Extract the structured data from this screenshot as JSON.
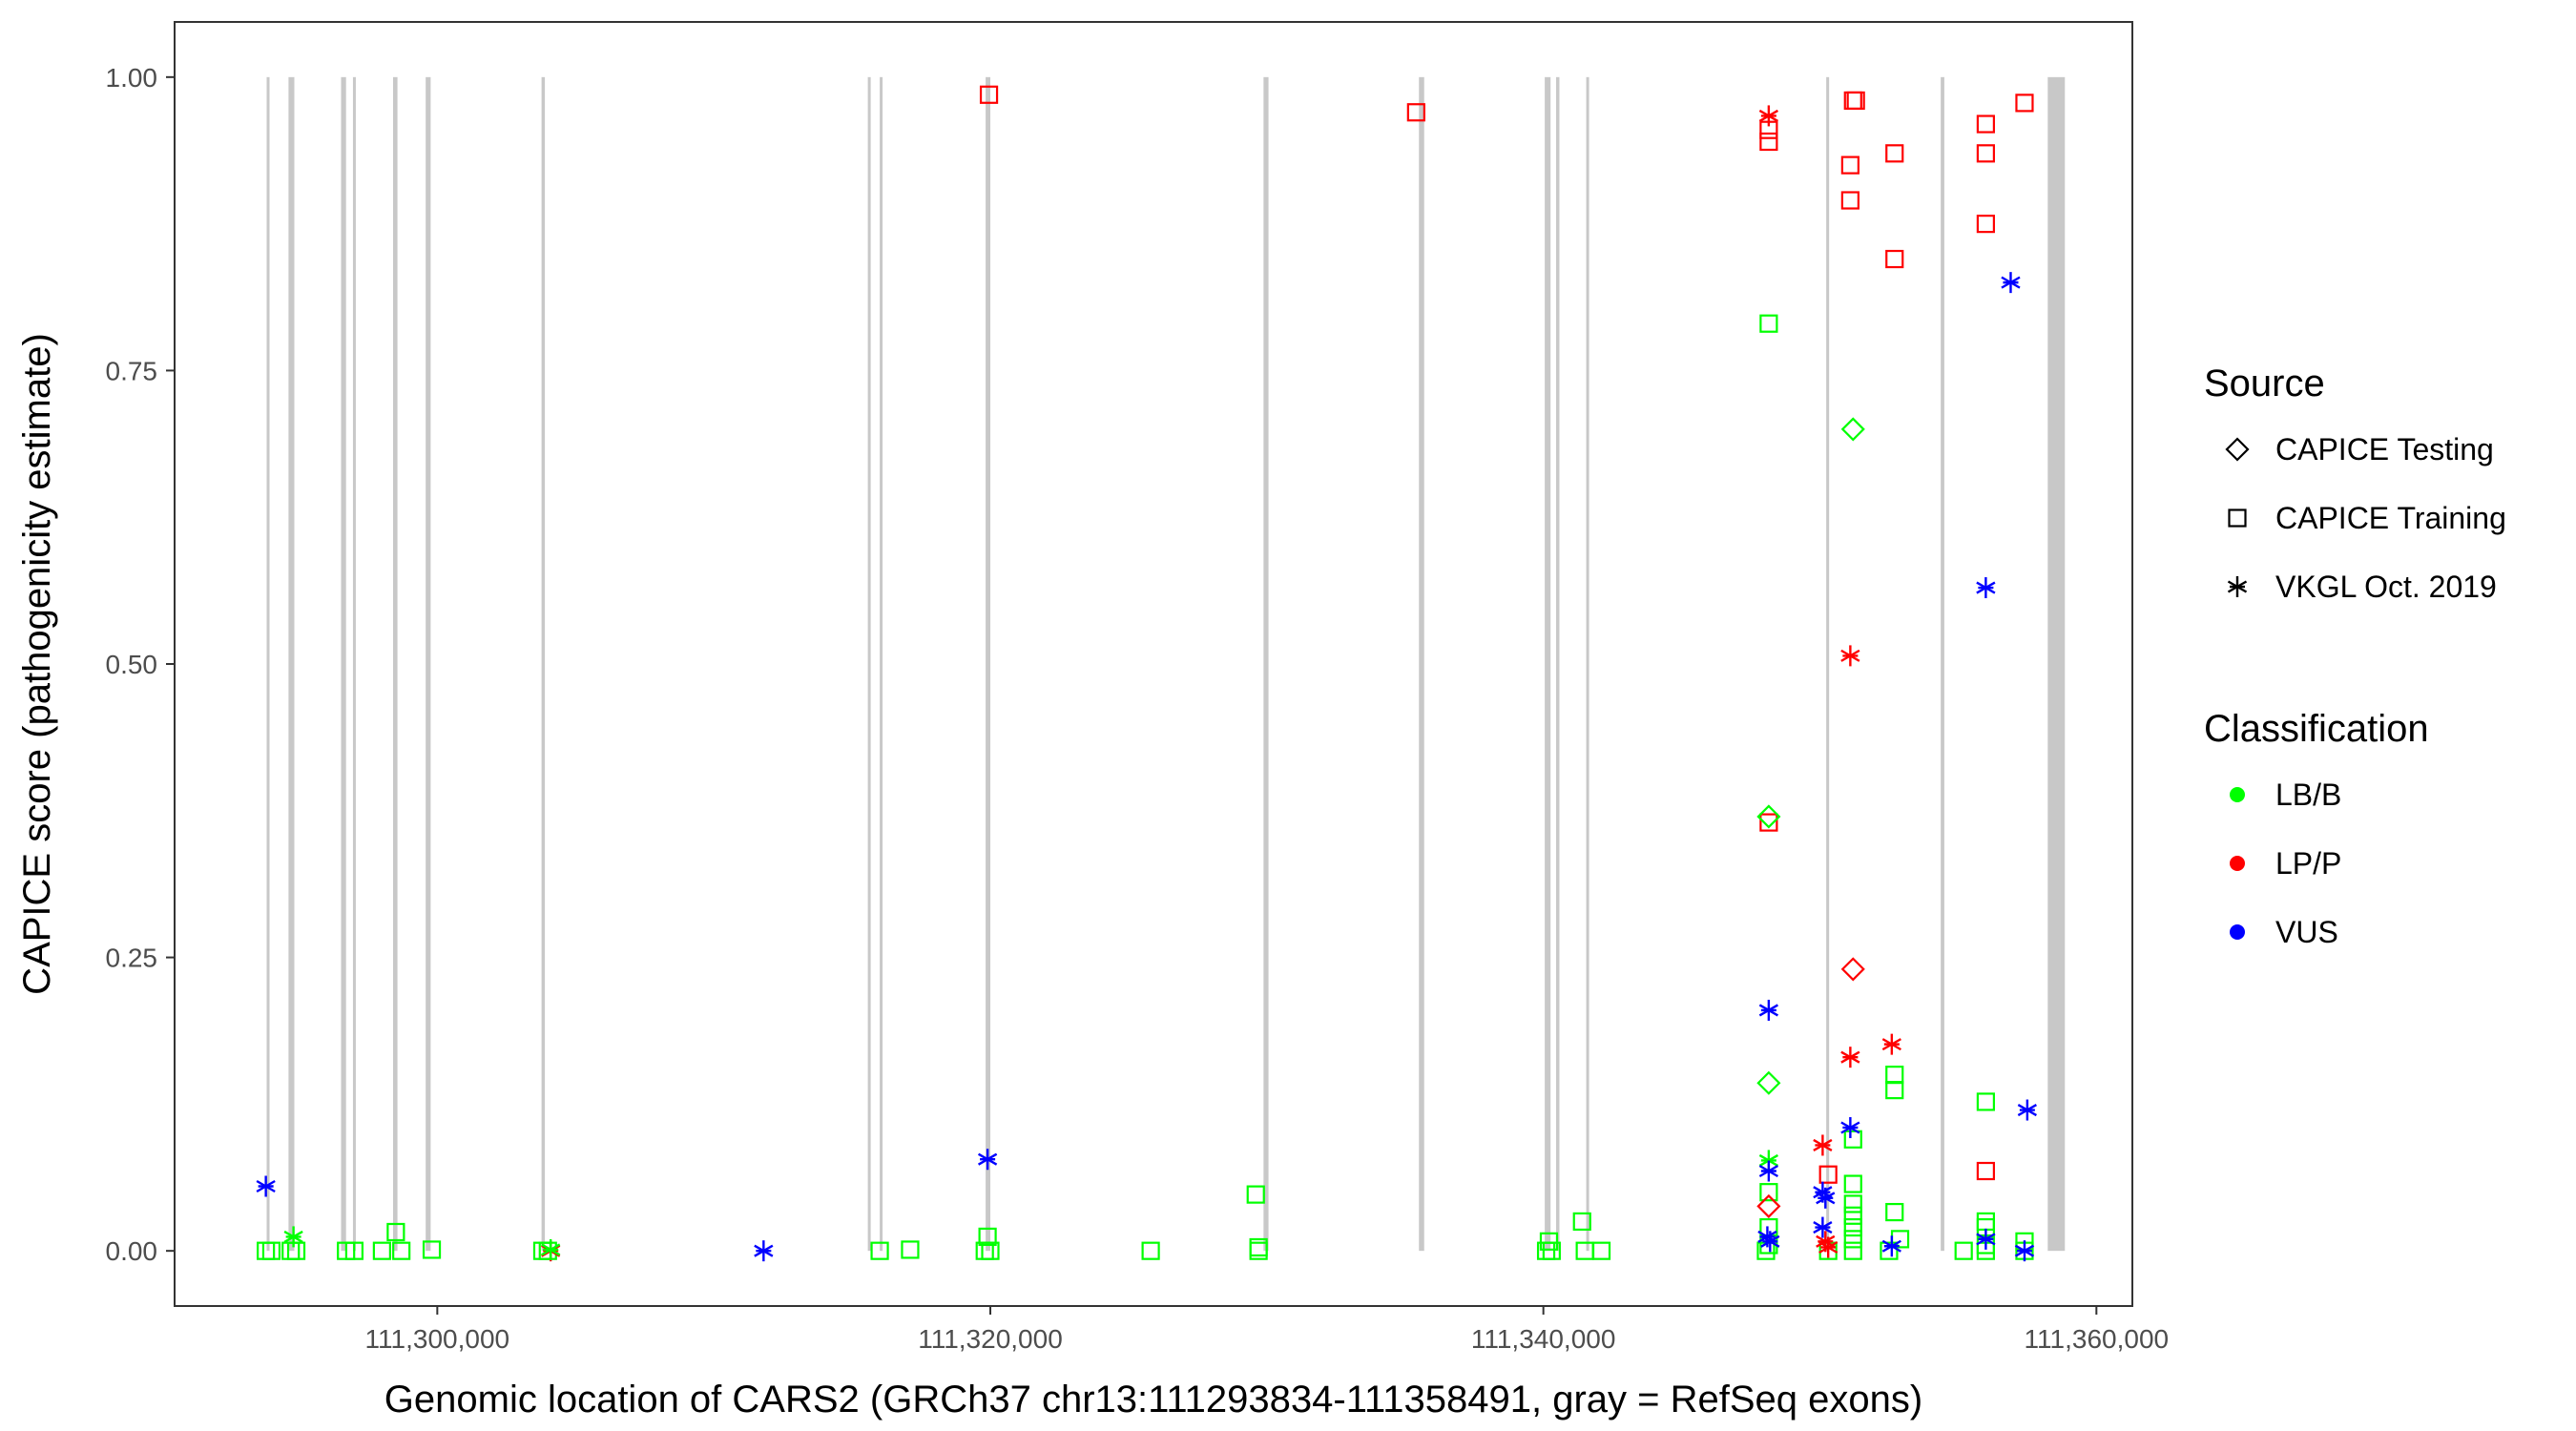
{
  "chart_data": {
    "type": "scatter",
    "xlabel": "Genomic location of CARS2 (GRCh37 chr13:111293834-111358491, gray = RefSeq exons)",
    "ylabel": "CAPICE score (pathogenicity estimate)",
    "xlim": [
      111290500,
      111361300
    ],
    "ylim": [
      -0.047,
      1.047
    ],
    "x_ticks": [
      111300000,
      111320000,
      111340000,
      111360000
    ],
    "x_tick_labels": [
      "111,300,000",
      "111,320,000",
      "111,340,000",
      "111,360,000"
    ],
    "y_ticks": [
      0,
      0.25,
      0.5,
      0.75,
      1
    ],
    "y_tick_labels": [
      "0.00",
      "0.25",
      "0.50",
      "0.75",
      "1.00"
    ],
    "grid": false,
    "legend_position": "right",
    "colors": {
      "LB/B": "#00ff00",
      "LP/P": "#ff0000",
      "VUS": "#0000ff",
      "exon": "#c8c8c8"
    },
    "exons": [
      [
        111293830,
        111293930
      ],
      [
        111294620,
        111294830
      ],
      [
        111296520,
        111296700
      ],
      [
        111296950,
        111297050
      ],
      [
        111298400,
        111298560
      ],
      [
        111299580,
        111299760
      ],
      [
        111303770,
        111303890
      ],
      [
        111315570,
        111315640
      ],
      [
        111316000,
        111316080
      ],
      [
        111319830,
        111320000
      ],
      [
        111329880,
        111330060
      ],
      [
        111335500,
        111335690
      ],
      [
        111340050,
        111340260
      ],
      [
        111340460,
        111340580
      ],
      [
        111341550,
        111341650
      ],
      [
        111350230,
        111350310
      ],
      [
        111354370,
        111354500
      ],
      [
        111358240,
        111358860
      ]
    ],
    "legends": [
      {
        "title": "Source",
        "items": [
          {
            "label": "CAPICE Testing",
            "shape": "diamond"
          },
          {
            "label": "CAPICE Training",
            "shape": "square"
          },
          {
            "label": "VKGL Oct. 2019",
            "shape": "asterisk"
          }
        ]
      },
      {
        "title": "Classification",
        "items": [
          {
            "label": "LB/B",
            "color": "#00ff00"
          },
          {
            "label": "LP/P",
            "color": "#ff0000"
          },
          {
            "label": "VUS",
            "color": "#0000ff"
          }
        ]
      }
    ],
    "series": [
      {
        "name": "CAPICE Training",
        "shape": "square",
        "points": [
          {
            "x": 111293800,
            "y": 0.0,
            "c": "LB/B"
          },
          {
            "x": 111294000,
            "y": 0.0,
            "c": "LB/B"
          },
          {
            "x": 111294700,
            "y": 0.0,
            "c": "LB/B"
          },
          {
            "x": 111294900,
            "y": 0.0,
            "c": "LB/B"
          },
          {
            "x": 111296700,
            "y": 0.0,
            "c": "LB/B"
          },
          {
            "x": 111297000,
            "y": 0.0,
            "c": "LB/B"
          },
          {
            "x": 111298000,
            "y": 0.0,
            "c": "LB/B"
          },
          {
            "x": 111298500,
            "y": 0.016,
            "c": "LB/B"
          },
          {
            "x": 111298700,
            "y": 0.0,
            "c": "LB/B"
          },
          {
            "x": 111299800,
            "y": 0.001,
            "c": "LB/B"
          },
          {
            "x": 111303800,
            "y": 0.0,
            "c": "LB/B"
          },
          {
            "x": 111304000,
            "y": 0.0,
            "c": "LB/B"
          },
          {
            "x": 111316000,
            "y": 0.0,
            "c": "LB/B"
          },
          {
            "x": 111317100,
            "y": 0.001,
            "c": "LB/B"
          },
          {
            "x": 111319800,
            "y": 0.0,
            "c": "LB/B"
          },
          {
            "x": 111319900,
            "y": 0.012,
            "c": "LB/B"
          },
          {
            "x": 111320000,
            "y": 0.0,
            "c": "LB/B"
          },
          {
            "x": 111319950,
            "y": 0.985,
            "c": "LP/P"
          },
          {
            "x": 111325800,
            "y": 0.0,
            "c": "LB/B"
          },
          {
            "x": 111329600,
            "y": 0.048,
            "c": "LB/B"
          },
          {
            "x": 111329700,
            "y": 0.0,
            "c": "LB/B"
          },
          {
            "x": 111329700,
            "y": 0.003,
            "c": "LB/B"
          },
          {
            "x": 111335400,
            "y": 0.97,
            "c": "LP/P"
          },
          {
            "x": 111340100,
            "y": 0.0,
            "c": "LB/B"
          },
          {
            "x": 111340200,
            "y": 0.008,
            "c": "LB/B"
          },
          {
            "x": 111340300,
            "y": 0.0,
            "c": "LB/B"
          },
          {
            "x": 111341400,
            "y": 0.025,
            "c": "LB/B"
          },
          {
            "x": 111341500,
            "y": 0.0,
            "c": "LB/B"
          },
          {
            "x": 111342100,
            "y": 0.0,
            "c": "LB/B"
          },
          {
            "x": 111348050,
            "y": 0.0,
            "c": "LB/B"
          },
          {
            "x": 111348150,
            "y": 0.79,
            "c": "LB/B"
          },
          {
            "x": 111348150,
            "y": 0.945,
            "c": "LP/P"
          },
          {
            "x": 111348150,
            "y": 0.955,
            "c": "LP/P"
          },
          {
            "x": 111348150,
            "y": 0.365,
            "c": "LP/P"
          },
          {
            "x": 111348150,
            "y": 0.05,
            "c": "LB/B"
          },
          {
            "x": 111348150,
            "y": 0.02,
            "c": "LB/B"
          },
          {
            "x": 111348150,
            "y": 0.005,
            "c": "LB/B"
          },
          {
            "x": 111350300,
            "y": 0.065,
            "c": "LP/P"
          },
          {
            "x": 111350300,
            "y": 0.0,
            "c": "LB/B"
          },
          {
            "x": 111351200,
            "y": 0.98,
            "c": "LP/P"
          },
          {
            "x": 111351300,
            "y": 0.98,
            "c": "LP/P"
          },
          {
            "x": 111351100,
            "y": 0.925,
            "c": "LP/P"
          },
          {
            "x": 111351100,
            "y": 0.895,
            "c": "LP/P"
          },
          {
            "x": 111351200,
            "y": 0.095,
            "c": "LB/B"
          },
          {
            "x": 111351200,
            "y": 0.057,
            "c": "LB/B"
          },
          {
            "x": 111351200,
            "y": 0.04,
            "c": "LB/B"
          },
          {
            "x": 111351200,
            "y": 0.03,
            "c": "LB/B"
          },
          {
            "x": 111351200,
            "y": 0.02,
            "c": "LB/B"
          },
          {
            "x": 111351200,
            "y": 0.01,
            "c": "LB/B"
          },
          {
            "x": 111351200,
            "y": 0.0,
            "c": "LB/B"
          },
          {
            "x": 111352700,
            "y": 0.935,
            "c": "LP/P"
          },
          {
            "x": 111352700,
            "y": 0.845,
            "c": "LP/P"
          },
          {
            "x": 111352700,
            "y": 0.15,
            "c": "LB/B"
          },
          {
            "x": 111352700,
            "y": 0.137,
            "c": "LB/B"
          },
          {
            "x": 111352700,
            "y": 0.033,
            "c": "LB/B"
          },
          {
            "x": 111352900,
            "y": 0.01,
            "c": "LB/B"
          },
          {
            "x": 111352500,
            "y": 0.0,
            "c": "LB/B"
          },
          {
            "x": 111355200,
            "y": 0.0,
            "c": "LB/B"
          },
          {
            "x": 111356000,
            "y": 0.96,
            "c": "LP/P"
          },
          {
            "x": 111356000,
            "y": 0.935,
            "c": "LP/P"
          },
          {
            "x": 111356000,
            "y": 0.875,
            "c": "LP/P"
          },
          {
            "x": 111356000,
            "y": 0.127,
            "c": "LB/B"
          },
          {
            "x": 111356000,
            "y": 0.068,
            "c": "LP/P"
          },
          {
            "x": 111356000,
            "y": 0.025,
            "c": "LB/B"
          },
          {
            "x": 111356000,
            "y": 0.02,
            "c": "LB/B"
          },
          {
            "x": 111356000,
            "y": 0.005,
            "c": "LB/B"
          },
          {
            "x": 111356000,
            "y": 0.0,
            "c": "LB/B"
          },
          {
            "x": 111357400,
            "y": 0.978,
            "c": "LP/P"
          },
          {
            "x": 111357400,
            "y": 0.008,
            "c": "LB/B"
          },
          {
            "x": 111357400,
            "y": 0.0,
            "c": "LB/B"
          }
        ]
      },
      {
        "name": "CAPICE Testing",
        "shape": "diamond",
        "points": [
          {
            "x": 111348150,
            "y": 0.37,
            "c": "LB/B"
          },
          {
            "x": 111348150,
            "y": 0.143,
            "c": "LB/B"
          },
          {
            "x": 111348150,
            "y": 0.038,
            "c": "LP/P"
          },
          {
            "x": 111351200,
            "y": 0.7,
            "c": "LB/B"
          },
          {
            "x": 111351200,
            "y": 0.24,
            "c": "LP/P"
          }
        ]
      },
      {
        "name": "VKGL Oct. 2019",
        "shape": "asterisk",
        "points": [
          {
            "x": 111293800,
            "y": 0.055,
            "c": "VUS"
          },
          {
            "x": 111294800,
            "y": 0.012,
            "c": "LB/B"
          },
          {
            "x": 111304100,
            "y": 0.0,
            "c": "LP/P"
          },
          {
            "x": 111304100,
            "y": 0.001,
            "c": "LB/B"
          },
          {
            "x": 111311800,
            "y": 0.0,
            "c": "VUS"
          },
          {
            "x": 111319900,
            "y": 0.078,
            "c": "VUS"
          },
          {
            "x": 111348150,
            "y": 0.967,
            "c": "LP/P"
          },
          {
            "x": 111348150,
            "y": 0.205,
            "c": "VUS"
          },
          {
            "x": 111348150,
            "y": 0.077,
            "c": "LB/B"
          },
          {
            "x": 111348150,
            "y": 0.068,
            "c": "VUS"
          },
          {
            "x": 111348100,
            "y": 0.012,
            "c": "VUS"
          },
          {
            "x": 111348200,
            "y": 0.008,
            "c": "VUS"
          },
          {
            "x": 111350100,
            "y": 0.09,
            "c": "LP/P"
          },
          {
            "x": 111350100,
            "y": 0.05,
            "c": "VUS"
          },
          {
            "x": 111350200,
            "y": 0.045,
            "c": "VUS"
          },
          {
            "x": 111350100,
            "y": 0.02,
            "c": "VUS"
          },
          {
            "x": 111350200,
            "y": 0.008,
            "c": "LP/P"
          },
          {
            "x": 111350300,
            "y": 0.003,
            "c": "LP/P"
          },
          {
            "x": 111351100,
            "y": 0.507,
            "c": "LP/P"
          },
          {
            "x": 111351100,
            "y": 0.165,
            "c": "LP/P"
          },
          {
            "x": 111351100,
            "y": 0.105,
            "c": "VUS"
          },
          {
            "x": 111352600,
            "y": 0.176,
            "c": "LP/P"
          },
          {
            "x": 111352600,
            "y": 0.004,
            "c": "VUS"
          },
          {
            "x": 111356000,
            "y": 0.565,
            "c": "VUS"
          },
          {
            "x": 111356000,
            "y": 0.01,
            "c": "VUS"
          },
          {
            "x": 111356900,
            "y": 0.825,
            "c": "VUS"
          },
          {
            "x": 111357500,
            "y": 0.12,
            "c": "VUS"
          },
          {
            "x": 111357400,
            "y": 0.0,
            "c": "VUS"
          }
        ]
      }
    ]
  }
}
